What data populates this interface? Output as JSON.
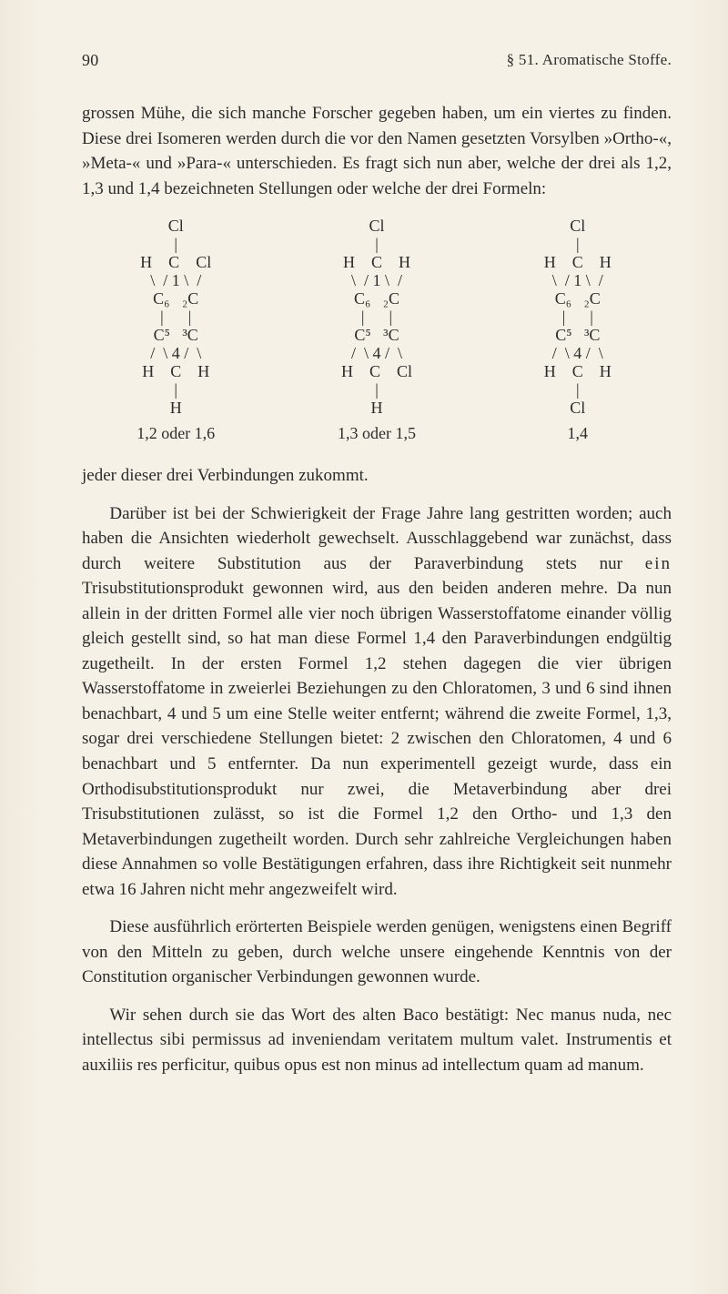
{
  "page_number": "90",
  "section_label": "§ 51.  Aromatische Stoffe.",
  "para1": "grossen Mühe, die sich manche Forscher gegeben haben, um ein viertes zu finden. Diese drei Isomeren werden durch die vor den Namen gesetzten Vorsylben »Ortho-«, »Meta-« und »Para-« unterschieden. Es fragt sich nun aber, welche der drei als 1,2, 1,3 und 1,4 bezeichneten Stellungen oder welche der drei Formeln:",
  "formulae": {
    "f1": {
      "top": "Cl",
      "row_top": [
        "H",
        "C",
        "Cl"
      ],
      "row_mid_left": "C₆",
      "row_mid_right": "₂C",
      "row_low_left": "C⁵",
      "row_low_right": "³C",
      "row_bot": [
        "H",
        "C",
        "H"
      ],
      "bottom": "H",
      "caption": "1,2 oder 1,6"
    },
    "f2": {
      "top": "Cl",
      "row_top": [
        "H",
        "C",
        "H"
      ],
      "row_mid_left": "C₆",
      "row_mid_right": "₂C",
      "row_low_left": "C⁵",
      "row_low_right": "³C",
      "row_bot": [
        "H",
        "C",
        "Cl"
      ],
      "bottom": "H",
      "caption": "1,3 oder 1,5"
    },
    "f3": {
      "top": "Cl",
      "row_top": [
        "H",
        "C",
        "H"
      ],
      "row_mid_left": "C₆",
      "row_mid_right": "₂C",
      "row_low_left": "C⁵",
      "row_low_right": "³C",
      "row_bot": [
        "H",
        "C",
        "H"
      ],
      "bottom": "Cl",
      "caption": "1,4"
    }
  },
  "para2": "jeder dieser drei Verbindungen zukommt.",
  "para3_lead": "Darüber ist bei der Schwierigkeit der Frage Jahre lang gestritten worden; auch haben die Ansichten wiederholt gewechselt. Ausschlaggebend war zunächst, dass durch weitere Substitution aus der Paraverbindung stets nur ",
  "para3_em": "ein",
  "para3_rest": " Trisubstitutionsprodukt gewonnen wird, aus den beiden anderen mehre. Da nun allein in der dritten Formel alle vier noch übrigen Wasserstoffatome einander völlig gleich gestellt sind, so hat man diese Formel 1,4 den Paraverbindungen endgültig zugetheilt. In der ersten Formel 1,2 stehen dagegen die vier übrigen Wasserstoffatome in zweierlei Beziehungen zu den Chloratomen, 3 und 6 sind ihnen benachbart, 4 und 5 um eine Stelle weiter entfernt; während die zweite Formel, 1,3, sogar drei verschiedene Stellungen bietet: 2 zwischen den Chloratomen, 4 und 6 benachbart und 5 entfernter. Da nun experimentell gezeigt wurde, dass ein Orthodisubstitutionsprodukt nur zwei, die Metaverbindung aber drei Trisubstitutionen zulässt, so ist die Formel 1,2 den Ortho- und 1,3 den Metaverbindungen zugetheilt worden. Durch sehr zahlreiche Vergleichungen haben diese Annahmen so volle Bestätigungen erfahren, dass ihre Richtigkeit seit nunmehr etwa 16 Jahren nicht mehr angezweifelt wird.",
  "para4": "Diese ausführlich erörterten Beispiele werden genügen, wenigstens einen Begriff von den Mitteln zu geben, durch welche unsere eingehende Kenntnis von der Constitution organischer Verbindungen gewonnen wurde.",
  "para5": "Wir sehen durch sie das Wort des alten Baco bestätigt: Nec manus nuda, nec intellectus sibi permissus ad inveniendam veritatem multum valet. Instrumentis et auxiliis res perficitur, quibus opus est non minus ad intellectum quam ad manum.",
  "colors": {
    "text": "#2b2b2b",
    "background": "#f6f1e7"
  },
  "fontsize_body_pt": 14,
  "fontsize_header_pt": 13
}
